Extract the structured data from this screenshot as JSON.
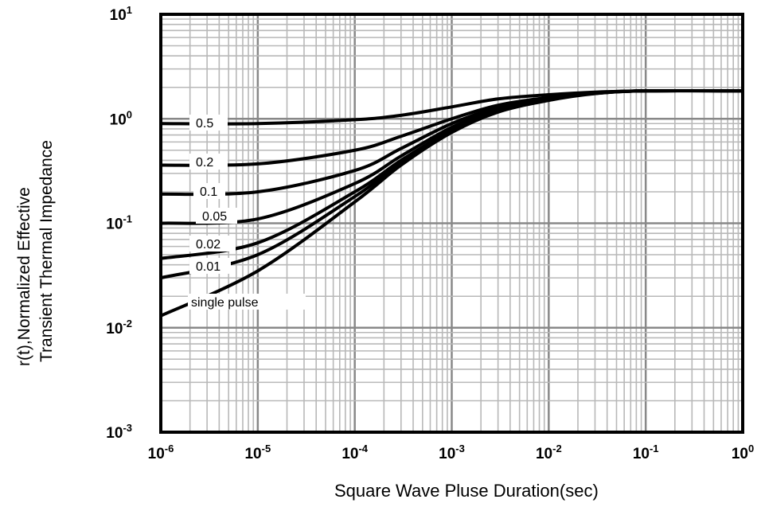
{
  "chart_data": {
    "type": "line",
    "title": "",
    "xlabel": "Square Wave Pluse Duration(sec)",
    "ylabel_lines": [
      "r(t),Normalized Effective",
      "Transient Thermal Impedance"
    ],
    "x_scale": "log",
    "y_scale": "log",
    "xlim": [
      1e-06,
      1
    ],
    "ylim": [
      0.001,
      10
    ],
    "grid": true,
    "x_ticks": [
      {
        "base": "10",
        "exp": "-6"
      },
      {
        "base": "10",
        "exp": "-5"
      },
      {
        "base": "10",
        "exp": "-4"
      },
      {
        "base": "10",
        "exp": "-3"
      },
      {
        "base": "10",
        "exp": "-2"
      },
      {
        "base": "10",
        "exp": "-1"
      },
      {
        "base": "10",
        "exp": "0"
      }
    ],
    "y_ticks": [
      {
        "base": "10",
        "exp": "1"
      },
      {
        "base": "10",
        "exp": "0"
      },
      {
        "base": "10",
        "exp": "-1"
      },
      {
        "base": "10",
        "exp": "-2"
      },
      {
        "base": "10",
        "exp": "-3"
      }
    ],
    "series": [
      {
        "name": "0.5",
        "x": [
          1e-06,
          1e-05,
          0.0001,
          0.0003,
          0.001,
          0.003,
          0.01,
          0.03,
          0.1,
          1
        ],
        "y": [
          0.9,
          0.9,
          0.98,
          1.08,
          1.3,
          1.55,
          1.7,
          1.8,
          1.85,
          1.85
        ]
      },
      {
        "name": "0.2",
        "x": [
          1e-06,
          1e-05,
          0.0001,
          0.0003,
          0.001,
          0.003,
          0.01,
          0.03,
          0.1,
          1
        ],
        "y": [
          0.36,
          0.37,
          0.5,
          0.68,
          1.0,
          1.35,
          1.6,
          1.78,
          1.85,
          1.85
        ]
      },
      {
        "name": "0.1",
        "x": [
          1e-06,
          1e-05,
          0.0001,
          0.0003,
          0.001,
          0.003,
          0.01,
          0.03,
          0.1,
          1
        ],
        "y": [
          0.19,
          0.2,
          0.32,
          0.52,
          0.9,
          1.28,
          1.58,
          1.77,
          1.85,
          1.85
        ]
      },
      {
        "name": "0.05",
        "x": [
          1e-06,
          1e-05,
          0.0001,
          0.0003,
          0.001,
          0.003,
          0.01,
          0.03,
          0.1,
          1
        ],
        "y": [
          0.1,
          0.11,
          0.24,
          0.44,
          0.83,
          1.22,
          1.55,
          1.76,
          1.85,
          1.85
        ]
      },
      {
        "name": "0.02",
        "x": [
          1e-06,
          1e-05,
          0.0001,
          0.0003,
          0.001,
          0.003,
          0.01,
          0.03,
          0.1,
          1
        ],
        "y": [
          0.046,
          0.065,
          0.2,
          0.4,
          0.78,
          1.2,
          1.53,
          1.75,
          1.85,
          1.85
        ]
      },
      {
        "name": "0.01",
        "x": [
          1e-06,
          1e-05,
          0.0001,
          0.0003,
          0.001,
          0.003,
          0.01,
          0.03,
          0.1,
          1
        ],
        "y": [
          0.03,
          0.05,
          0.18,
          0.38,
          0.76,
          1.18,
          1.52,
          1.75,
          1.85,
          1.85
        ]
      },
      {
        "name": "single pulse",
        "x": [
          1e-06,
          1e-05,
          0.0001,
          0.0003,
          0.001,
          0.003,
          0.01,
          0.03,
          0.1,
          1
        ],
        "y": [
          0.013,
          0.035,
          0.16,
          0.36,
          0.74,
          1.16,
          1.5,
          1.74,
          1.85,
          1.85
        ]
      }
    ]
  }
}
